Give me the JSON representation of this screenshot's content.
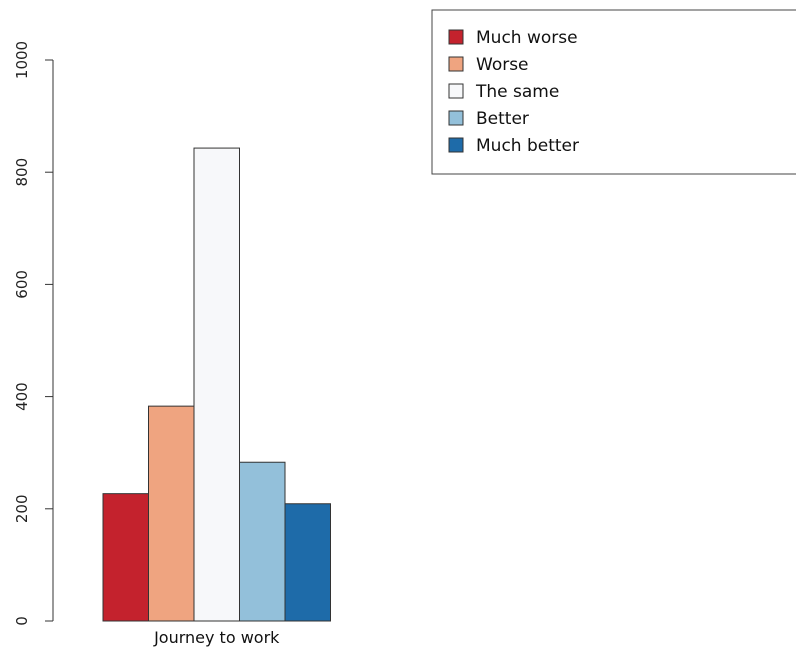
{
  "chart_data": {
    "type": "bar",
    "categories": [
      "Journey to work"
    ],
    "series": [
      {
        "name": "Much worse",
        "color": "#c4222d",
        "values": [
          227
        ]
      },
      {
        "name": "Worse",
        "color": "#efa480",
        "values": [
          383
        ]
      },
      {
        "name": "The same",
        "color": "#f7f8fa",
        "values": [
          843
        ]
      },
      {
        "name": "Better",
        "color": "#93c0da",
        "values": [
          283
        ]
      },
      {
        "name": "Much better",
        "color": "#1e6ba9",
        "values": [
          209
        ]
      }
    ],
    "yticks": [
      0,
      200,
      400,
      600,
      800,
      1000
    ],
    "ylim": [
      0,
      1000
    ],
    "grid": false,
    "legend_position": "top-right",
    "title": "",
    "xlabel": "",
    "ylabel": ""
  }
}
